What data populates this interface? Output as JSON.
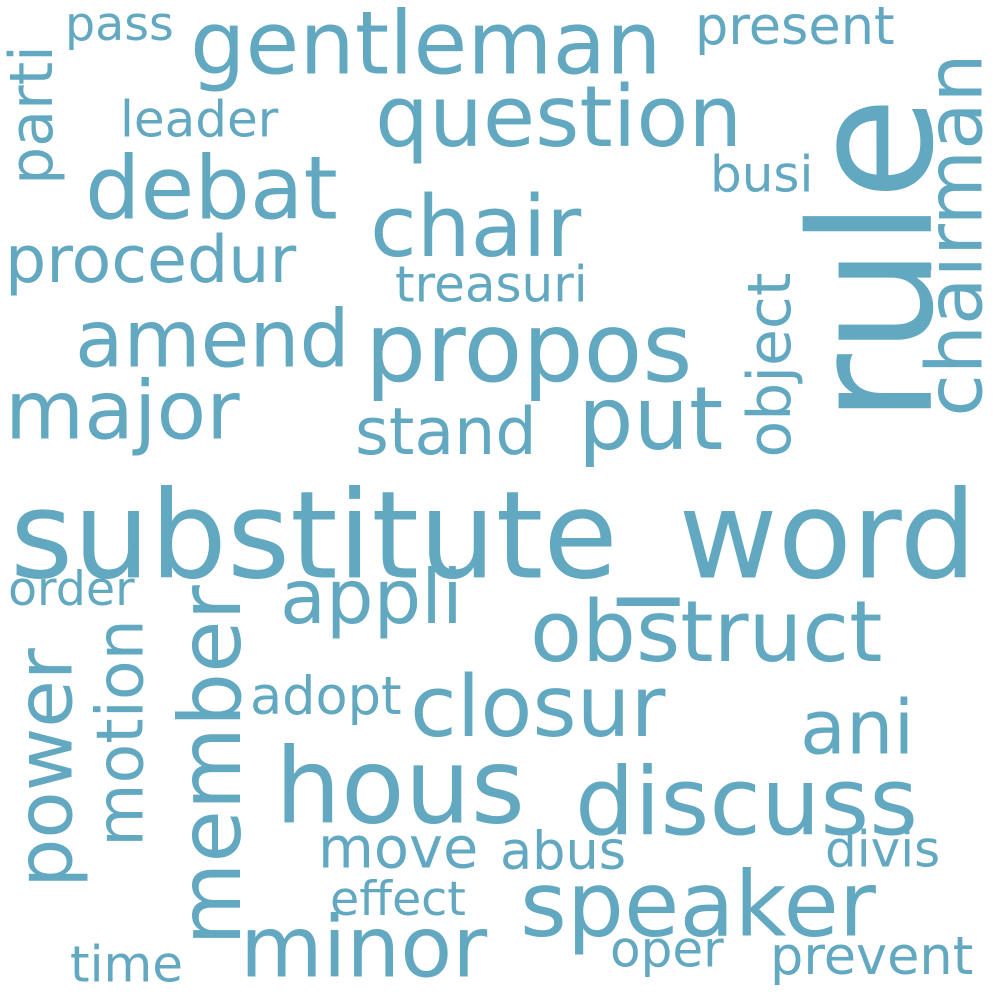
{
  "word_color": "#62a8c1",
  "background_color": "#ffffff",
  "words": [
    {
      "text": "rule",
      "orientation": "vertical"
    },
    {
      "text": "substitute_word",
      "orientation": "horizontal"
    },
    {
      "text": "hous",
      "orientation": "horizontal"
    },
    {
      "text": "member",
      "orientation": "vertical"
    },
    {
      "text": "discuss",
      "orientation": "horizontal"
    },
    {
      "text": "propos",
      "orientation": "horizontal"
    },
    {
      "text": "question",
      "orientation": "horizontal"
    },
    {
      "text": "gentleman",
      "orientation": "horizontal"
    },
    {
      "text": "speaker",
      "orientation": "horizontal"
    },
    {
      "text": "obstruct",
      "orientation": "horizontal"
    },
    {
      "text": "closur",
      "orientation": "horizontal"
    },
    {
      "text": "debat",
      "orientation": "horizontal"
    },
    {
      "text": "chair",
      "orientation": "horizontal"
    },
    {
      "text": "amend",
      "orientation": "horizontal"
    },
    {
      "text": "major",
      "orientation": "horizontal"
    },
    {
      "text": "minor",
      "orientation": "horizontal"
    },
    {
      "text": "chairman",
      "orientation": "vertical"
    },
    {
      "text": "power",
      "orientation": "vertical"
    },
    {
      "text": "put",
      "orientation": "horizontal"
    },
    {
      "text": "ani",
      "orientation": "horizontal"
    },
    {
      "text": "appli",
      "orientation": "horizontal"
    },
    {
      "text": "procedur",
      "orientation": "horizontal"
    },
    {
      "text": "motion",
      "orientation": "vertical"
    },
    {
      "text": "object",
      "orientation": "vertical"
    },
    {
      "text": "stand",
      "orientation": "horizontal"
    },
    {
      "text": "move",
      "orientation": "horizontal"
    },
    {
      "text": "present",
      "orientation": "horizontal"
    },
    {
      "text": "parti",
      "orientation": "vertical"
    },
    {
      "text": "prevent",
      "orientation": "horizontal"
    },
    {
      "text": "treasuri",
      "orientation": "horizontal"
    },
    {
      "text": "adopt",
      "orientation": "horizontal"
    },
    {
      "text": "abus",
      "orientation": "horizontal"
    },
    {
      "text": "leader",
      "orientation": "horizontal"
    },
    {
      "text": "busi",
      "orientation": "horizontal"
    },
    {
      "text": "divis",
      "orientation": "horizontal"
    },
    {
      "text": "effect",
      "orientation": "horizontal"
    },
    {
      "text": "time",
      "orientation": "horizontal"
    },
    {
      "text": "oper",
      "orientation": "horizontal"
    },
    {
      "text": "order",
      "orientation": "horizontal"
    },
    {
      "text": "pass",
      "orientation": "horizontal"
    }
  ]
}
